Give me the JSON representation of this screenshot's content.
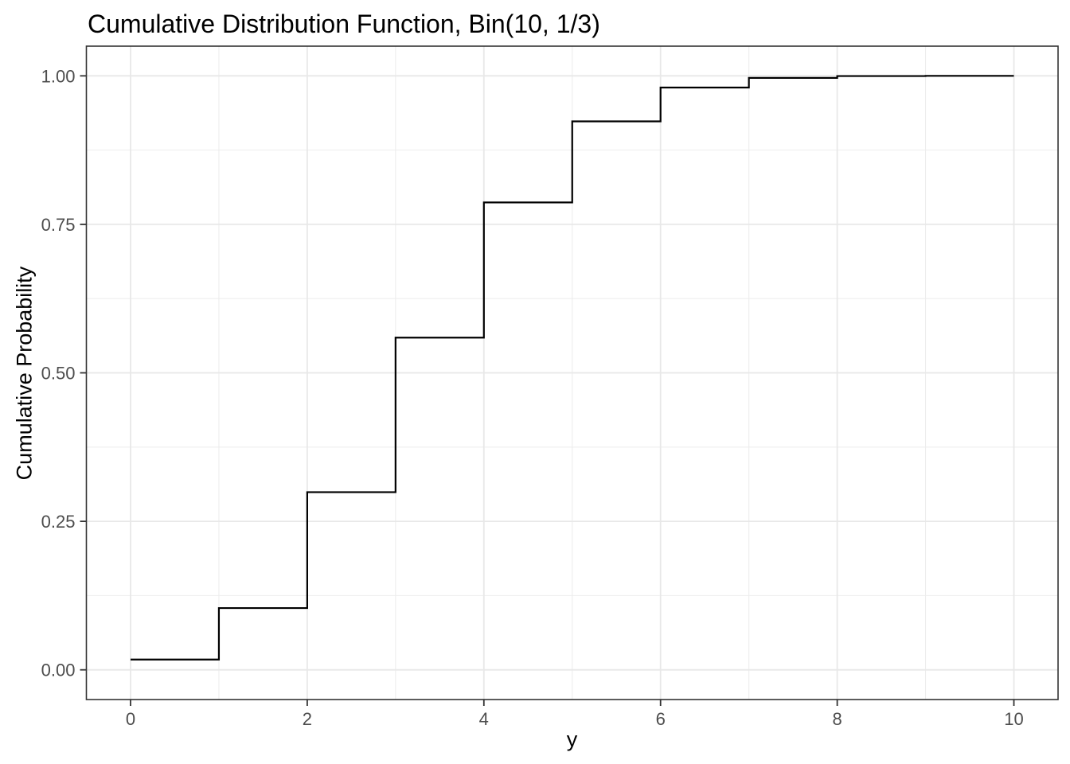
{
  "chart_data": {
    "type": "line",
    "subtype": "step",
    "title": "Cumulative Distribution Function, Bin(10, 1/3)",
    "xlabel": "y",
    "ylabel": "Cumulative Probability",
    "x": [
      0,
      1,
      2,
      3,
      4,
      5,
      6,
      7,
      8,
      9,
      10
    ],
    "cdf": [
      0.0173,
      0.104,
      0.2991,
      0.5593,
      0.7869,
      0.9234,
      0.9803,
      0.9966,
      0.9997,
      1.0,
      1.0
    ],
    "x_ticks": {
      "values": [
        0,
        2,
        4,
        6,
        8,
        10
      ],
      "labels": [
        "0",
        "2",
        "4",
        "6",
        "8",
        "10"
      ]
    },
    "y_ticks": {
      "values": [
        0,
        0.25,
        0.5,
        0.75,
        1.0
      ],
      "labels": [
        "0.00",
        "0.25",
        "0.50",
        "0.75",
        "1.00"
      ]
    },
    "x_minor": [
      1,
      3,
      5,
      7,
      9
    ],
    "y_minor": [
      0.125,
      0.375,
      0.625,
      0.875
    ],
    "xlim": [
      -0.5,
      10.5
    ],
    "ylim": [
      -0.05,
      1.05
    ],
    "grid": true,
    "legend": "none",
    "colors": {
      "line": "#000000",
      "grid_major": "#e8e8e8",
      "grid_minor": "#ededed",
      "panel_border": "#333333",
      "tick": "#333333",
      "tick_label": "#4d4d4d",
      "title_text": "#000000",
      "background": "#ffffff"
    }
  }
}
